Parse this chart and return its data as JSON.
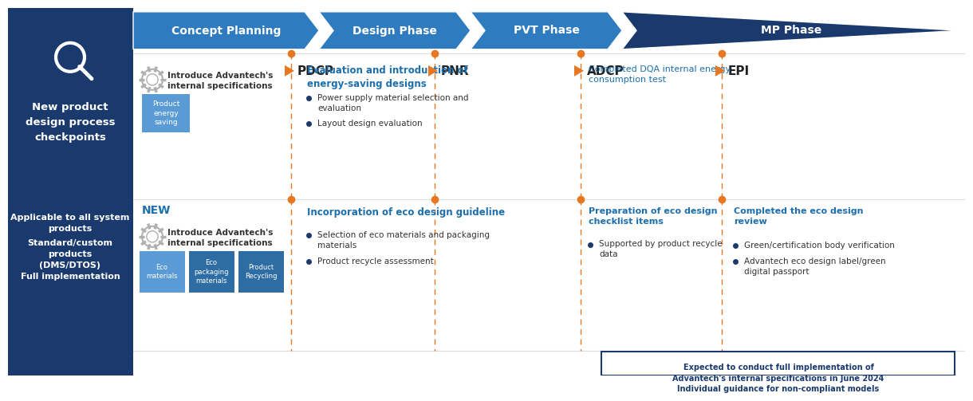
{
  "bg_color": "#ffffff",
  "left_panel_color": "#1a3a6e",
  "orange_color": "#e87722",
  "blue_text_color": "#1c6fad",
  "dark_blue_text": "#1a3a6e",
  "phase_color_light": "#2e7bbf",
  "phase_color_dark": "#1a3a6e",
  "phases": [
    "Concept Planning",
    "Design Phase",
    "PVT Phase",
    "MP Phase"
  ],
  "checkpoints": [
    "PDCP",
    "PNR",
    "ADCP",
    "EPI"
  ],
  "note_text": "Expected to conduct full implementation of\nAdvantech's internal specifications in June 2024\nIndividual guidance for non-compliant models",
  "box_color_light": "#5b9bd5",
  "box_color_dark": "#2e6da4",
  "box_labels_row1": [
    "Product\nenergy\nsaving"
  ],
  "box_labels_row2": [
    "Eco\nmaterials",
    "Eco\npackaging\nmaterials",
    "Product\nRecycling"
  ]
}
